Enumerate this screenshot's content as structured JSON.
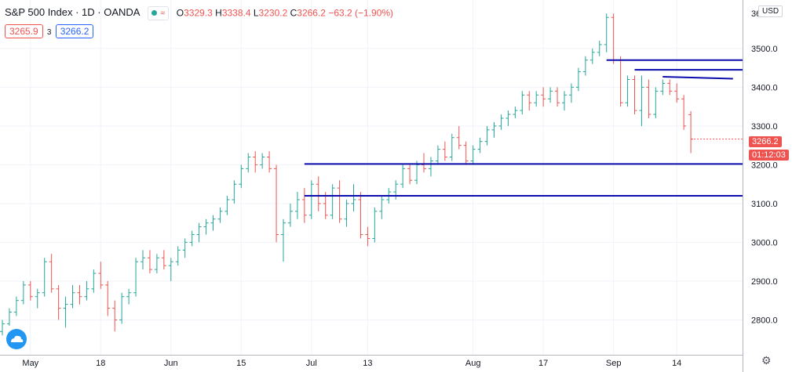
{
  "header": {
    "title": "S&P 500 Index · 1D · OANDA",
    "ohlc": [
      {
        "k": "O",
        "v": "3329.3"
      },
      {
        "k": "H",
        "v": "3338.4"
      },
      {
        "k": "L",
        "v": "3230.2"
      },
      {
        "k": "C",
        "v": "3266.2"
      }
    ],
    "change": "−63.2 (−1.90%)",
    "status_icon": "market-open-dot",
    "status_glyph": "≈"
  },
  "quote": {
    "bid": "3265.9",
    "spread": "3",
    "ask": "3266.2"
  },
  "axis": {
    "currency": "USD",
    "last_price": "3266.2",
    "countdown": "01:12:03",
    "top_partial": "36"
  },
  "colors": {
    "up": "#26a69a",
    "down": "#ef5350",
    "lines": "#0d0dad",
    "grid": "#f0f3fa"
  },
  "chart_data": {
    "type": "ohlc",
    "ylim": [
      2710,
      3625
    ],
    "yticks": [
      {
        "label": "2800.0",
        "v": 2800
      },
      {
        "label": "2900.0",
        "v": 2900
      },
      {
        "label": "3000.0",
        "v": 3000
      },
      {
        "label": "3100.0",
        "v": 3100
      },
      {
        "label": "3200.0",
        "v": 3200
      },
      {
        "label": "3300.0",
        "v": 3300
      },
      {
        "label": "3400.0",
        "v": 3400
      },
      {
        "label": "3500.0",
        "v": 3500
      }
    ],
    "xticks": [
      {
        "label": "May",
        "i": 4
      },
      {
        "label": "18",
        "i": 14
      },
      {
        "label": "Jun",
        "i": 24
      },
      {
        "label": "15",
        "i": 34
      },
      {
        "label": "Jul",
        "i": 44
      },
      {
        "label": "13",
        "i": 52
      },
      {
        "label": "Aug",
        "i": 67
      },
      {
        "label": "17",
        "i": 77
      },
      {
        "label": "Sep",
        "i": 87
      },
      {
        "label": "14",
        "i": 96
      }
    ],
    "bars": [
      [
        2770,
        2800,
        2760,
        2790
      ],
      [
        2790,
        2830,
        2785,
        2820
      ],
      [
        2820,
        2860,
        2810,
        2850
      ],
      [
        2850,
        2900,
        2840,
        2890
      ],
      [
        2890,
        2900,
        2850,
        2860
      ],
      [
        2860,
        2880,
        2830,
        2870
      ],
      [
        2870,
        2960,
        2860,
        2950
      ],
      [
        2950,
        2970,
        2870,
        2880
      ],
      [
        2880,
        2890,
        2800,
        2830
      ],
      [
        2830,
        2860,
        2780,
        2840
      ],
      [
        2840,
        2890,
        2830,
        2870
      ],
      [
        2870,
        2890,
        2840,
        2860
      ],
      [
        2860,
        2900,
        2850,
        2880
      ],
      [
        2880,
        2930,
        2870,
        2920
      ],
      [
        2920,
        2950,
        2880,
        2890
      ],
      [
        2890,
        2900,
        2810,
        2830
      ],
      [
        2830,
        2850,
        2770,
        2800
      ],
      [
        2800,
        2870,
        2790,
        2860
      ],
      [
        2860,
        2880,
        2840,
        2870
      ],
      [
        2870,
        2960,
        2860,
        2950
      ],
      [
        2950,
        2980,
        2930,
        2960
      ],
      [
        2960,
        2980,
        2920,
        2930
      ],
      [
        2930,
        2970,
        2920,
        2960
      ],
      [
        2960,
        2980,
        2930,
        2940
      ],
      [
        2940,
        2960,
        2900,
        2950
      ],
      [
        2950,
        2990,
        2940,
        2980
      ],
      [
        2980,
        3010,
        2960,
        3000
      ],
      [
        3000,
        3030,
        2990,
        3020
      ],
      [
        3020,
        3050,
        3000,
        3040
      ],
      [
        3040,
        3060,
        3020,
        3050
      ],
      [
        3050,
        3070,
        3030,
        3060
      ],
      [
        3060,
        3090,
        3050,
        3080
      ],
      [
        3080,
        3120,
        3070,
        3110
      ],
      [
        3110,
        3160,
        3100,
        3150
      ],
      [
        3150,
        3200,
        3140,
        3190
      ],
      [
        3190,
        3230,
        3180,
        3220
      ],
      [
        3220,
        3235,
        3180,
        3200
      ],
      [
        3200,
        3230,
        3190,
        3220
      ],
      [
        3220,
        3235,
        3180,
        3190
      ],
      [
        3190,
        3200,
        3000,
        3020
      ],
      [
        3020,
        3060,
        2950,
        3050
      ],
      [
        3050,
        3100,
        3040,
        3080
      ],
      [
        3080,
        3130,
        3060,
        3110
      ],
      [
        3110,
        3140,
        3050,
        3070
      ],
      [
        3070,
        3160,
        3060,
        3150
      ],
      [
        3150,
        3170,
        3080,
        3100
      ],
      [
        3100,
        3130,
        3060,
        3070
      ],
      [
        3070,
        3150,
        3060,
        3140
      ],
      [
        3140,
        3160,
        3050,
        3060
      ],
      [
        3060,
        3110,
        3040,
        3100
      ],
      [
        3100,
        3150,
        3080,
        3110
      ],
      [
        3110,
        3130,
        3010,
        3020
      ],
      [
        3020,
        3040,
        2990,
        3010
      ],
      [
        3010,
        3090,
        3000,
        3080
      ],
      [
        3080,
        3120,
        3060,
        3110
      ],
      [
        3110,
        3140,
        3100,
        3130
      ],
      [
        3130,
        3160,
        3110,
        3150
      ],
      [
        3150,
        3200,
        3140,
        3190
      ],
      [
        3190,
        3200,
        3150,
        3160
      ],
      [
        3160,
        3210,
        3150,
        3200
      ],
      [
        3200,
        3230,
        3180,
        3190
      ],
      [
        3190,
        3220,
        3170,
        3210
      ],
      [
        3210,
        3250,
        3200,
        3240
      ],
      [
        3240,
        3260,
        3210,
        3220
      ],
      [
        3220,
        3280,
        3210,
        3270
      ],
      [
        3270,
        3300,
        3240,
        3250
      ],
      [
        3250,
        3260,
        3200,
        3210
      ],
      [
        3210,
        3250,
        3200,
        3240
      ],
      [
        3240,
        3270,
        3230,
        3260
      ],
      [
        3260,
        3300,
        3250,
        3290
      ],
      [
        3290,
        3310,
        3270,
        3300
      ],
      [
        3300,
        3330,
        3290,
        3320
      ],
      [
        3320,
        3340,
        3300,
        3330
      ],
      [
        3330,
        3350,
        3320,
        3340
      ],
      [
        3340,
        3390,
        3330,
        3380
      ],
      [
        3380,
        3390,
        3340,
        3360
      ],
      [
        3360,
        3390,
        3350,
        3380
      ],
      [
        3380,
        3400,
        3350,
        3370
      ],
      [
        3370,
        3400,
        3360,
        3390
      ],
      [
        3390,
        3400,
        3350,
        3360
      ],
      [
        3360,
        3390,
        3340,
        3380
      ],
      [
        3380,
        3410,
        3360,
        3400
      ],
      [
        3400,
        3450,
        3390,
        3440
      ],
      [
        3440,
        3480,
        3430,
        3470
      ],
      [
        3470,
        3500,
        3460,
        3490
      ],
      [
        3490,
        3520,
        3480,
        3510
      ],
      [
        3510,
        3590,
        3490,
        3580
      ],
      [
        3580,
        3590,
        3460,
        3470
      ],
      [
        3470,
        3480,
        3350,
        3360
      ],
      [
        3360,
        3430,
        3350,
        3420
      ],
      [
        3420,
        3430,
        3330,
        3340
      ],
      [
        3340,
        3430,
        3300,
        3400
      ],
      [
        3400,
        3420,
        3320,
        3330
      ],
      [
        3330,
        3400,
        3320,
        3390
      ],
      [
        3390,
        3420,
        3380,
        3410
      ],
      [
        3410,
        3420,
        3380,
        3390
      ],
      [
        3390,
        3410,
        3360,
        3370
      ],
      [
        3370,
        3380,
        3290,
        3300
      ],
      [
        3329.3,
        3338.4,
        3230.2,
        3266.2
      ]
    ],
    "hlines": [
      {
        "v": 3470,
        "from": 86,
        "to": 110
      },
      {
        "v": 3445,
        "from": 90,
        "to": 110
      },
      {
        "v": 3427,
        "to_v": 3422,
        "from": 94,
        "to": 104
      },
      {
        "v": 3202,
        "from": 43,
        "to": 107
      },
      {
        "v": 3120,
        "from": 43,
        "to": 107
      }
    ]
  }
}
